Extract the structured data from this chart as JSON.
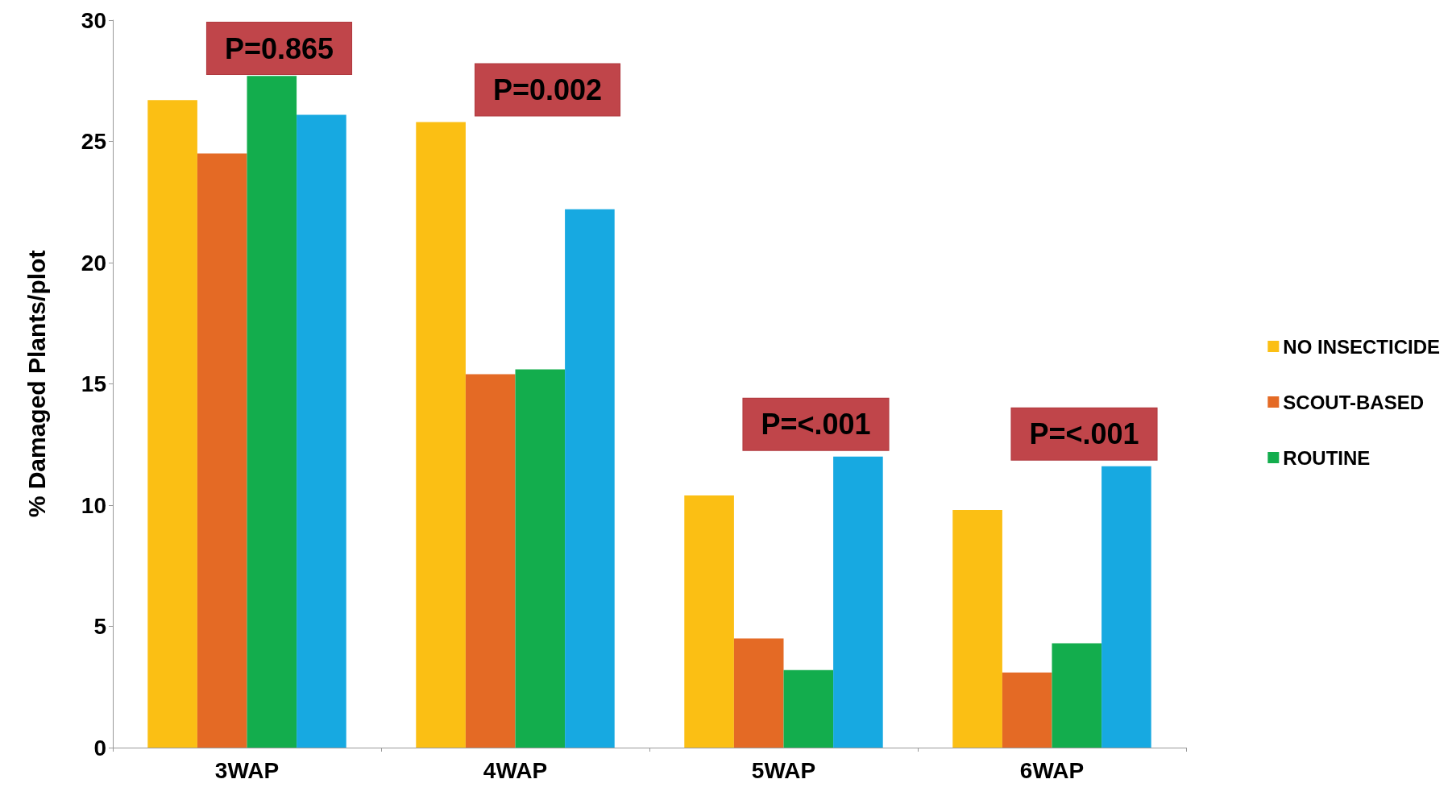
{
  "chart_data": {
    "type": "bar",
    "ylabel": "% Damaged Plants/plot",
    "categories": [
      "3WAP",
      "4WAP",
      "5WAP",
      "6WAP"
    ],
    "series": [
      {
        "name": "NO INSECTICIDE",
        "color": "#fbbf14",
        "values": [
          26.7,
          25.8,
          10.4,
          9.8
        ]
      },
      {
        "name": "SCOUT-BASED",
        "color": "#e46a25",
        "values": [
          24.5,
          15.4,
          4.5,
          3.1
        ]
      },
      {
        "name": "ROUTINE",
        "color": "#13ad4d",
        "values": [
          27.7,
          15.6,
          3.2,
          4.3
        ]
      },
      {
        "color": "#17a9e1",
        "values": [
          26.1,
          22.2,
          12.0,
          11.6
        ]
      }
    ],
    "annotations": [
      "P=0.865",
      "P=0.002",
      "P=<.001",
      "P=<.001"
    ],
    "ylim": [
      0,
      30
    ],
    "yticks": [
      0,
      5,
      10,
      15,
      20,
      25,
      30
    ],
    "grid": false,
    "legend": "right"
  }
}
